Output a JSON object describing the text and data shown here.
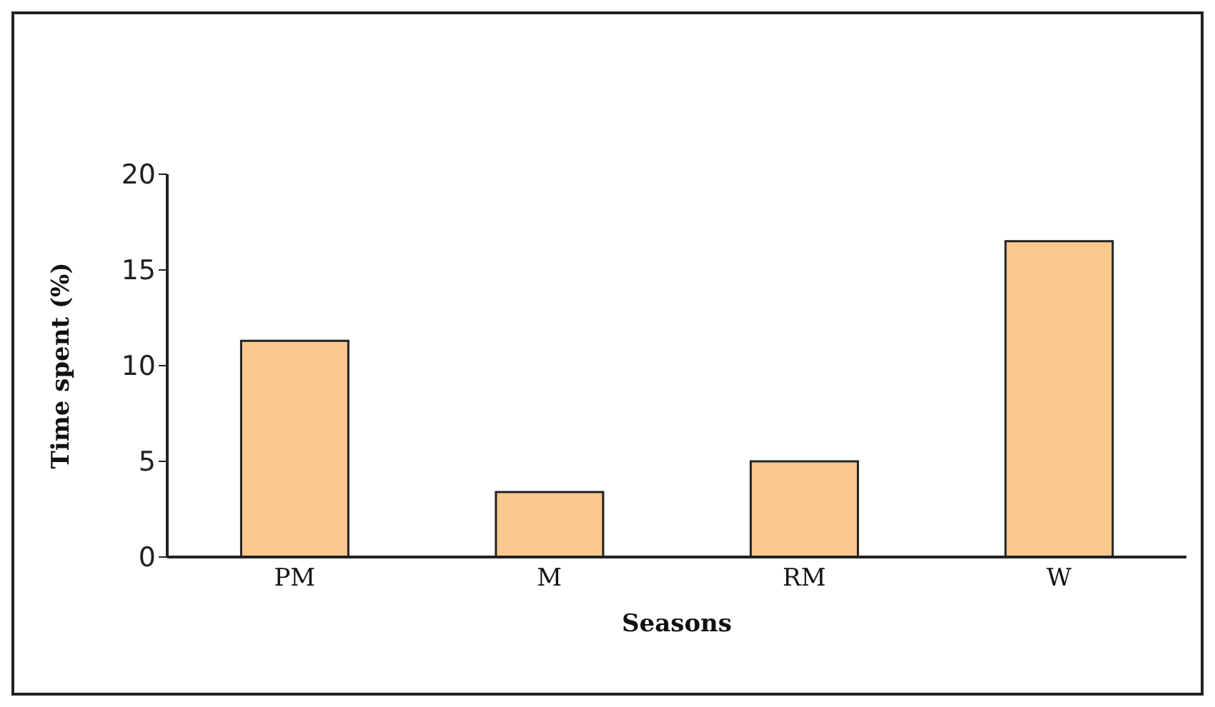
{
  "chart_data": {
    "type": "bar",
    "xlabel": "Seasons",
    "ylabel": "Time spent (%)",
    "categories": [
      "PM",
      "M",
      "RM",
      "W"
    ],
    "values": [
      11.3,
      3.4,
      5.0,
      16.5
    ],
    "color": "#fbc98e",
    "ylim": [
      0,
      20
    ],
    "yticks": [
      0,
      5,
      10,
      15,
      20
    ],
    "grid": false,
    "legend": false
  }
}
